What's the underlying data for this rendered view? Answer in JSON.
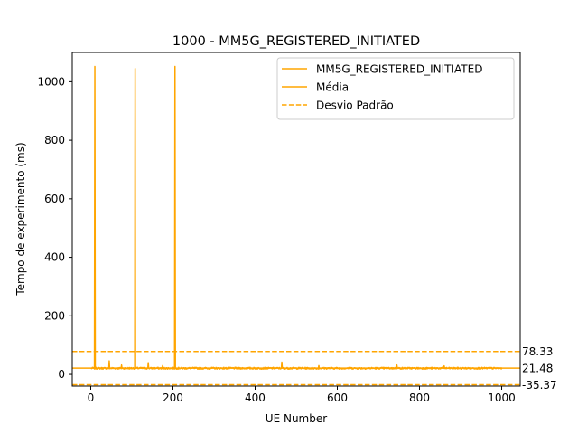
{
  "chart_data": {
    "type": "line",
    "title": "1000 - MM5G_REGISTERED_INITIATED",
    "xlabel": "UE Number",
    "ylabel": "Tempo de experimento (ms)",
    "xlim": [
      -45,
      1045
    ],
    "ylim": [
      -40,
      1100
    ],
    "x_ticks": [
      0,
      200,
      400,
      600,
      800,
      1000
    ],
    "y_ticks": [
      0,
      200,
      400,
      600,
      800,
      1000
    ],
    "x_tick_labels": [
      "0",
      "200",
      "400",
      "600",
      "800",
      "1000"
    ],
    "y_tick_labels": [
      "0",
      "200",
      "400",
      "600",
      "800",
      "1000"
    ],
    "grid": false,
    "legend_position": "top-right",
    "series": [
      {
        "name": "MM5G_REGISTERED_INITIATED",
        "color": "#ffa500",
        "style": "solid",
        "baseline": 21,
        "noise": 3,
        "x_range": [
          1,
          1000
        ],
        "spikes": [
          {
            "x": 10,
            "y": 1052
          },
          {
            "x": 108,
            "y": 1045
          },
          {
            "x": 205,
            "y": 1052
          },
          {
            "x": 45,
            "y": 46
          },
          {
            "x": 140,
            "y": 40
          },
          {
            "x": 465,
            "y": 42
          },
          {
            "x": 75,
            "y": 32
          },
          {
            "x": 175,
            "y": 30
          },
          {
            "x": 555,
            "y": 30
          },
          {
            "x": 745,
            "y": 32
          },
          {
            "x": 860,
            "y": 29
          }
        ]
      },
      {
        "name": "Média",
        "color": "#ffa500",
        "style": "solid",
        "value": 21.48
      },
      {
        "name": "Desvio Padrão",
        "color": "#ffa500",
        "style": "dashed",
        "values": [
          78.33,
          -35.37
        ]
      }
    ],
    "annotations": [
      "78.33",
      "21.48",
      "-35.37"
    ]
  }
}
